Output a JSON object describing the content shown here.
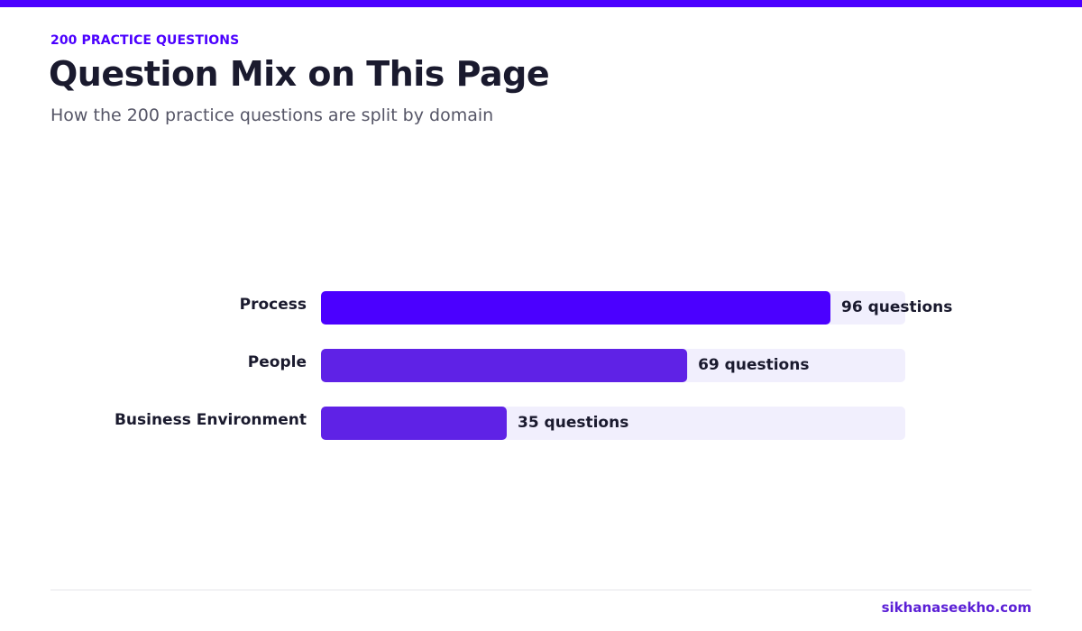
{
  "header": {
    "eyebrow": "200 PRACTICE QUESTIONS",
    "title": "Question Mix on This Page",
    "subtitle": "How the 200 practice questions are split by domain"
  },
  "footer": {
    "brand": "sikhanaseekho.com"
  },
  "colors": {
    "accent": "#4b00ff",
    "bar_primary": "#4b00ff",
    "bar_secondary": "#5f22e6",
    "track": "#f1effd",
    "label_text": "#1a1a2e",
    "brand_text": "#5b1fd6"
  },
  "chart_data": {
    "type": "bar",
    "orientation": "horizontal",
    "title": "",
    "xlabel": "",
    "ylabel": "",
    "categories": [
      "Process",
      "People",
      "Business Environment"
    ],
    "values": [
      96,
      69,
      35
    ],
    "value_labels": [
      "96 questions",
      "69 questions",
      "35 questions"
    ],
    "xlim": [
      0,
      110
    ],
    "grid": false
  }
}
